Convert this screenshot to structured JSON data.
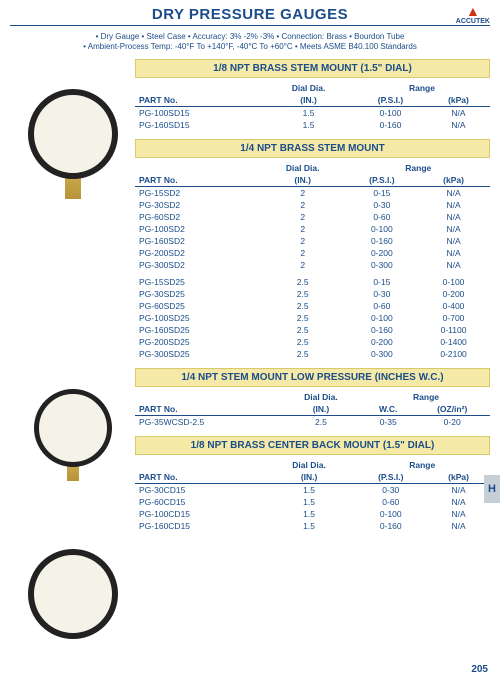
{
  "page_title": "DRY PRESSURE GAUGES",
  "logo_text": "ACCUTEK",
  "specs_line1": "• Dry Gauge • Steel Case • Accuracy: 3% -2% -3% • Connection: Brass • Bourdon Tube",
  "specs_line2": "• Ambient-Process Temp: -40°F To +140°F,  -40°C To +60°C • Meets ASME B40.100 Standards",
  "side_tab": "H",
  "page_number": "205",
  "col_part": "PART No.",
  "col_dial_top": "Dial Dia.",
  "col_dial": "(IN.)",
  "col_range_top": "Range",
  "col_psi": "(P.S.I.)",
  "col_kpa": "(kPa)",
  "col_wc": "W.C.",
  "col_oz": "(OZ/in²)",
  "sections": [
    {
      "heading": "1/8 NPT BRASS STEM MOUNT (1.5\" DIAL)",
      "range_cols": [
        "(P.S.I.)",
        "(kPa)"
      ],
      "rows": [
        {
          "p": "PG-100SD15",
          "d": "1.5",
          "a": "0-100",
          "b": "N/A"
        },
        {
          "p": "PG-160SD15",
          "d": "1.5",
          "a": "0-160",
          "b": "N/A"
        }
      ]
    },
    {
      "heading": "1/4 NPT BRASS STEM MOUNT",
      "range_cols": [
        "(P.S.I.)",
        "(kPa)"
      ],
      "rows": [
        {
          "p": "PG-15SD2",
          "d": "2",
          "a": "0-15",
          "b": "N/A"
        },
        {
          "p": "PG-30SD2",
          "d": "2",
          "a": "0-30",
          "b": "N/A"
        },
        {
          "p": "PG-60SD2",
          "d": "2",
          "a": "0-60",
          "b": "N/A"
        },
        {
          "p": "PG-100SD2",
          "d": "2",
          "a": "0-100",
          "b": "N/A"
        },
        {
          "p": "PG-160SD2",
          "d": "2",
          "a": "0-160",
          "b": "N/A"
        },
        {
          "p": "PG-200SD2",
          "d": "2",
          "a": "0-200",
          "b": "N/A"
        },
        {
          "p": "PG-300SD2",
          "d": "2",
          "a": "0-300",
          "b": "N/A"
        }
      ],
      "rows2": [
        {
          "p": "PG-15SD25",
          "d": "2.5",
          "a": "0-15",
          "b": "0-100"
        },
        {
          "p": "PG-30SD25",
          "d": "2.5",
          "a": "0-30",
          "b": "0-200"
        },
        {
          "p": "PG-60SD25",
          "d": "2.5",
          "a": "0-60",
          "b": "0-400"
        },
        {
          "p": "PG-100SD25",
          "d": "2.5",
          "a": "0-100",
          "b": "0-700"
        },
        {
          "p": "PG-160SD25",
          "d": "2.5",
          "a": "0-160",
          "b": "0-1100"
        },
        {
          "p": "PG-200SD25",
          "d": "2.5",
          "a": "0-200",
          "b": "0-1400"
        },
        {
          "p": "PG-300SD25",
          "d": "2.5",
          "a": "0-300",
          "b": "0-2100"
        }
      ]
    },
    {
      "heading": "1/4 NPT STEM MOUNT LOW PRESSURE (INCHES W.C.)",
      "range_cols": [
        "W.C.",
        "(OZ/in²)"
      ],
      "rows": [
        {
          "p": "PG-35WCSD-2.5",
          "d": "2.5",
          "a": "0-35",
          "b": "0-20"
        }
      ]
    },
    {
      "heading": "1/8 NPT BRASS CENTER BACK MOUNT (1.5\" DIAL)",
      "range_cols": [
        "(P.S.I.)",
        "(kPa)"
      ],
      "rows": [
        {
          "p": "PG-30CD15",
          "d": "1.5",
          "a": "0-30",
          "b": "N/A"
        },
        {
          "p": "PG-60CD15",
          "d": "1.5",
          "a": "0-60",
          "b": "N/A"
        },
        {
          "p": "PG-100CD15",
          "d": "1.5",
          "a": "0-100",
          "b": "N/A"
        },
        {
          "p": "PG-160CD15",
          "d": "1.5",
          "a": "0-160",
          "b": "N/A"
        }
      ]
    }
  ]
}
